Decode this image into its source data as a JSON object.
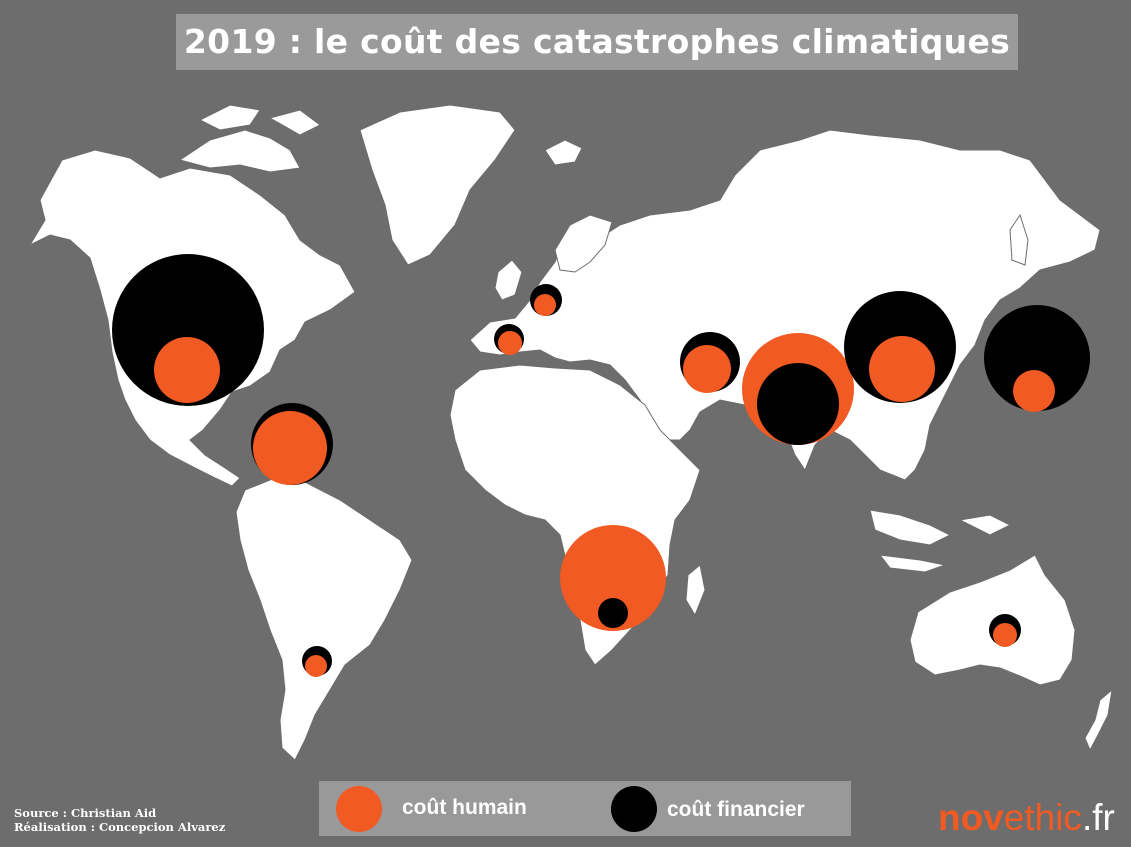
{
  "title": "2019 : le coût des catastrophes climatiques",
  "colors": {
    "background": "#6d6d6d",
    "land": "#ffffff",
    "human_cost": "#f15a22",
    "financial_cost": "#000000",
    "title_box": "#9a9a9a",
    "legend_box": "#999999"
  },
  "legend": {
    "human_label": "coût humain",
    "financial_label": "coût financier"
  },
  "credits": {
    "source": "Source : Christian Aid",
    "realisation": "Réalisation : Concepcion Alvarez"
  },
  "logo": {
    "part1": "nov",
    "part2": "ethic",
    "part3": ".fr"
  },
  "regions": [
    {
      "name": "usa"
    },
    {
      "name": "caribbean"
    },
    {
      "name": "argentina"
    },
    {
      "name": "france-belgium"
    },
    {
      "name": "spain"
    },
    {
      "name": "middle-east"
    },
    {
      "name": "india-south-asia"
    },
    {
      "name": "china"
    },
    {
      "name": "japan"
    },
    {
      "name": "southern-africa"
    },
    {
      "name": "australia"
    }
  ]
}
